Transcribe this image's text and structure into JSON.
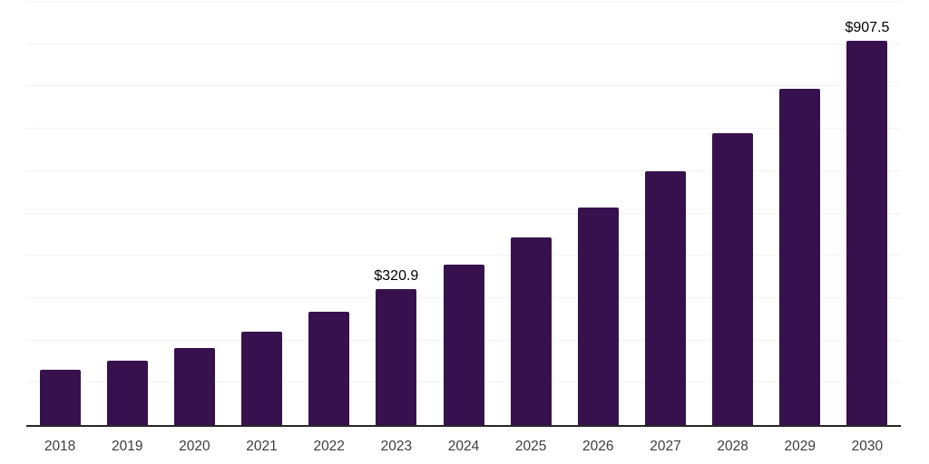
{
  "chart_data": {
    "type": "bar",
    "title": "",
    "xlabel": "",
    "ylabel": "",
    "categories": [
      "2018",
      "2019",
      "2020",
      "2021",
      "2022",
      "2023",
      "2024",
      "2025",
      "2026",
      "2027",
      "2028",
      "2029",
      "2030"
    ],
    "values": [
      130,
      152,
      181,
      220,
      267,
      320.9,
      378,
      443,
      514,
      599,
      690,
      794,
      907.5
    ],
    "data_labels": [
      {
        "category": "2023",
        "text": "$320.9"
      },
      {
        "category": "2030",
        "text": "$907.5"
      }
    ],
    "ylim": [
      0,
      1000
    ],
    "grid_step": 100,
    "grid": "on",
    "legend": "none",
    "y_axis_labels_visible": false,
    "colors": {
      "bar": "#37114d",
      "axis_line": "#262626",
      "gridline": "#f2f2f4",
      "tick_label": "#3d3d3d",
      "data_label": "#000000",
      "background": "#ffffff"
    }
  }
}
